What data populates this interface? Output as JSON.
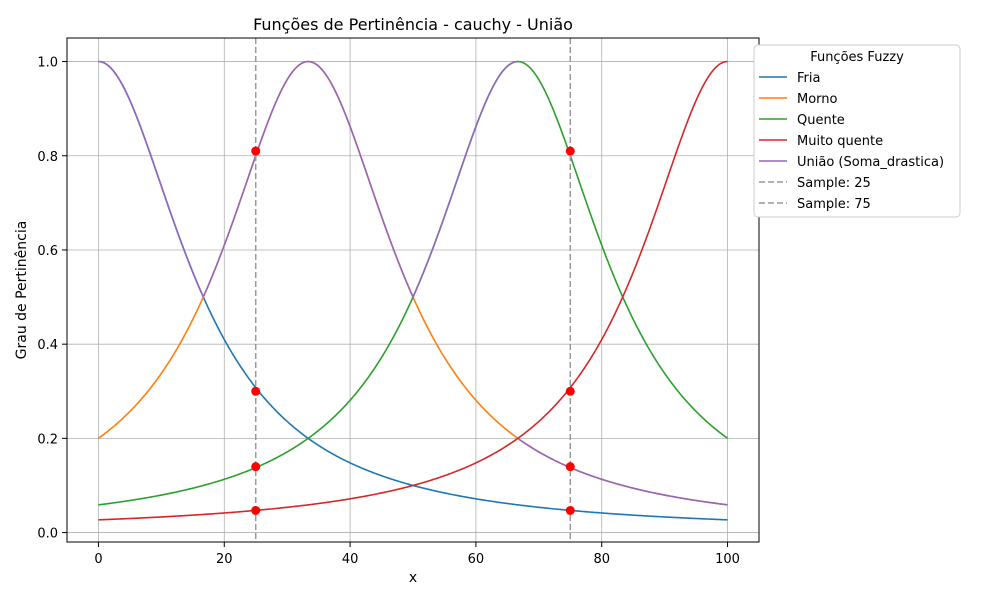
{
  "chart_data": {
    "type": "line",
    "title": "Funções de Pertinência - cauchy - União",
    "xlabel": "x",
    "ylabel": "Grau de Pertinência",
    "xlim": [
      -5,
      105
    ],
    "ylim": [
      -0.02,
      1.05
    ],
    "xticks": [
      0,
      20,
      40,
      60,
      80,
      100
    ],
    "yticks": [
      0.0,
      0.2,
      0.4,
      0.6,
      0.8,
      1.0
    ],
    "xtick_labels": [
      "0",
      "20",
      "40",
      "60",
      "80",
      "100"
    ],
    "ytick_labels": [
      "0.0",
      "0.2",
      "0.4",
      "0.6",
      "0.8",
      "1.0"
    ],
    "grid": true,
    "legend": {
      "title": "Funções Fuzzy",
      "placement": "outside-top-right",
      "entries": [
        "Fria",
        "Morno",
        "Quente",
        "Muito quente",
        "União (Soma_drastica)",
        "Sample: 25",
        "Sample: 75"
      ]
    },
    "series": [
      {
        "name": "Fria",
        "color": "#1f77b4",
        "center": 0,
        "width": 16.67,
        "x": [
          0,
          10,
          16.7,
          25,
          33.3,
          50,
          66.7,
          75,
          100
        ],
        "values": [
          1.0,
          0.74,
          0.5,
          0.31,
          0.2,
          0.1,
          0.059,
          0.047,
          0.027
        ]
      },
      {
        "name": "Morno",
        "color": "#ff7f0e",
        "center": 33.33,
        "width": 16.67,
        "x": [
          0,
          10,
          16.7
        ],
        "values": [
          0.2,
          0.34,
          0.51
        ]
      },
      {
        "name": "Quente",
        "color": "#2ca02c",
        "center": 66.67,
        "width": 16.67,
        "x": [
          0,
          25,
          50,
          66.7,
          75,
          100
        ],
        "values": [
          0.059,
          0.14,
          0.5,
          1.0,
          0.8,
          0.2
        ]
      },
      {
        "name": "Muito quente",
        "color": "#d62728",
        "center": 100,
        "width": 16.67,
        "x": [
          0,
          25,
          50,
          75,
          83.3,
          100
        ],
        "values": [
          0.027,
          0.047,
          0.1,
          0.31,
          0.5,
          1.0
        ]
      },
      {
        "name": "União (Soma_drastica)",
        "color": "#9467bd",
        "x": [
          0,
          16.7,
          25,
          33.3,
          50,
          75,
          100
        ],
        "values": [
          1.0,
          0.51,
          0.81,
          1.0,
          0.5,
          0.14,
          0.059
        ]
      }
    ],
    "samples": [
      {
        "label": "Sample: 25",
        "x": 25,
        "color": "#999999"
      },
      {
        "label": "Sample: 75",
        "x": 75,
        "color": "#999999"
      }
    ],
    "sample_points": [
      {
        "x": 25,
        "y": 0.81
      },
      {
        "x": 25,
        "y": 0.3
      },
      {
        "x": 25,
        "y": 0.14
      },
      {
        "x": 25,
        "y": 0.047
      },
      {
        "x": 75,
        "y": 0.81
      },
      {
        "x": 75,
        "y": 0.3
      },
      {
        "x": 75,
        "y": 0.14
      },
      {
        "x": 75,
        "y": 0.047
      }
    ],
    "point_color": "#ff0000"
  }
}
